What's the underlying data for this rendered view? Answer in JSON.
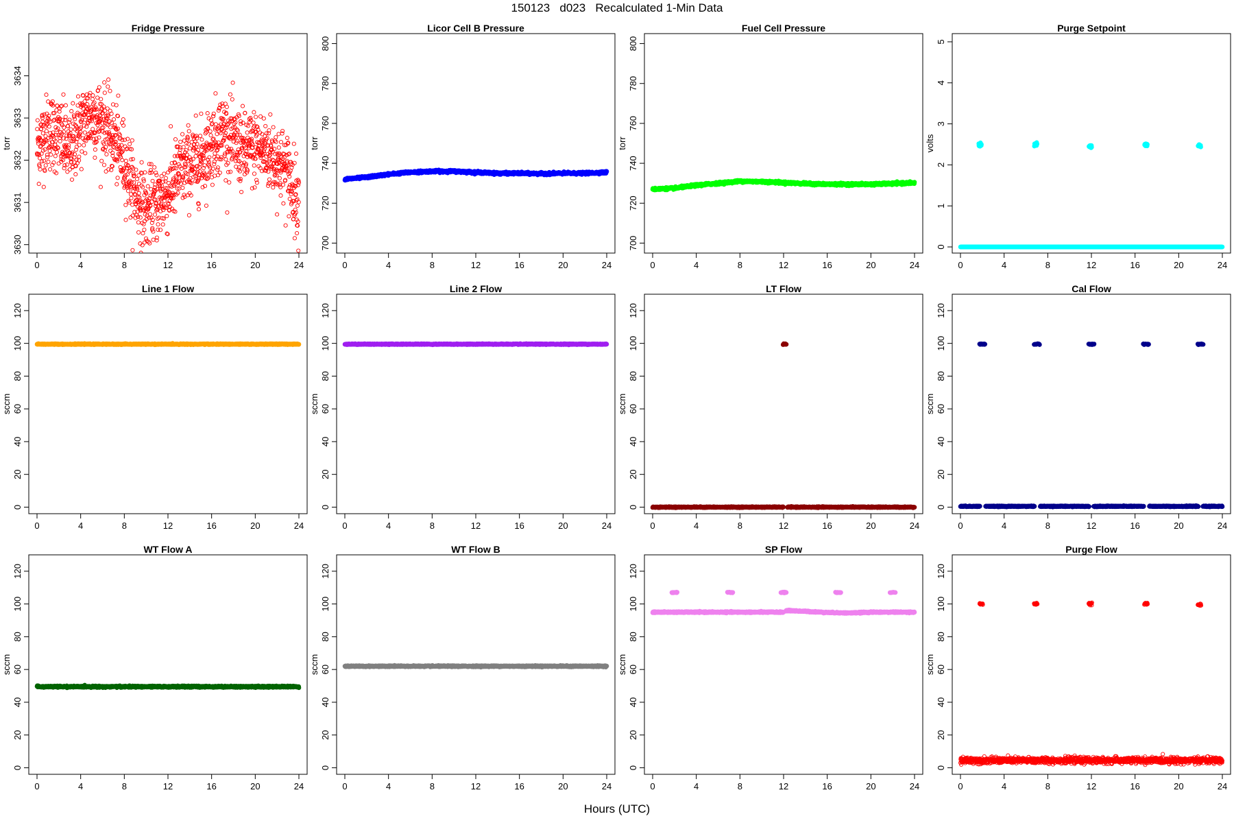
{
  "figure": {
    "title": "150123   d023   Recalculated 1-Min Data",
    "xlabel": "Hours (UTC)"
  },
  "chart_data": [
    {
      "type": "scatter",
      "title": "Fridge Pressure",
      "ylabel": "torr",
      "color": "#ff0000",
      "marker": "open-circle",
      "xlim": [
        0,
        24
      ],
      "xticks": [
        0,
        4,
        8,
        12,
        16,
        20,
        24
      ],
      "ylim": [
        3629.8,
        3635.0
      ],
      "yticks": [
        3630,
        3631,
        3632,
        3633,
        3634
      ],
      "series": [
        {
          "profile": [
            [
              0,
              3632.3
            ],
            [
              1,
              3632.7
            ],
            [
              2,
              3632.6
            ],
            [
              3,
              3632.2
            ],
            [
              4,
              3632.8
            ],
            [
              5,
              3633.1
            ],
            [
              6,
              3632.9
            ],
            [
              7,
              3632.5
            ],
            [
              8,
              3632.0
            ],
            [
              9,
              3631.2
            ],
            [
              10,
              3630.8
            ],
            [
              11,
              3631.0
            ],
            [
              12,
              3631.2
            ],
            [
              13,
              3631.7
            ],
            [
              14,
              3631.9
            ],
            [
              15,
              3632.0
            ],
            [
              16,
              3632.4
            ],
            [
              17,
              3632.7
            ],
            [
              18,
              3632.4
            ],
            [
              19,
              3632.2
            ],
            [
              20,
              3632.3
            ],
            [
              21,
              3632.2
            ],
            [
              22,
              3632.0
            ],
            [
              23,
              3631.7
            ],
            [
              24,
              3631.0
            ]
          ],
          "spread": 1.0,
          "n": 1440
        }
      ]
    },
    {
      "type": "scatter",
      "title": "Licor Cell B Pressure",
      "ylabel": "torr",
      "color": "#0000ff",
      "marker": "filled",
      "xlim": [
        0,
        24
      ],
      "xticks": [
        0,
        4,
        8,
        12,
        16,
        20,
        24
      ],
      "ylim": [
        695,
        805
      ],
      "yticks": [
        700,
        720,
        740,
        760,
        780,
        800
      ],
      "series": [
        {
          "profile": [
            [
              0,
              732
            ],
            [
              2,
              733
            ],
            [
              4,
              734.5
            ],
            [
              6,
              735.5
            ],
            [
              8,
              736
            ],
            [
              10,
              736
            ],
            [
              12,
              735.5
            ],
            [
              14,
              735
            ],
            [
              16,
              735
            ],
            [
              18,
              734.8
            ],
            [
              20,
              735
            ],
            [
              22,
              735
            ],
            [
              24,
              735.5
            ]
          ],
          "spread": 0.6,
          "n": 1440
        }
      ]
    },
    {
      "type": "scatter",
      "title": "Fuel Cell Pressure",
      "ylabel": "torr",
      "color": "#00ff00",
      "marker": "filled",
      "xlim": [
        0,
        24
      ],
      "xticks": [
        0,
        4,
        8,
        12,
        16,
        20,
        24
      ],
      "ylim": [
        695,
        805
      ],
      "yticks": [
        700,
        720,
        740,
        760,
        780,
        800
      ],
      "series": [
        {
          "profile": [
            [
              0,
              727
            ],
            [
              2,
              727.5
            ],
            [
              4,
              729
            ],
            [
              6,
              730
            ],
            [
              8,
              731
            ],
            [
              10,
              730.8
            ],
            [
              12,
              730.3
            ],
            [
              14,
              729.8
            ],
            [
              16,
              729.5
            ],
            [
              18,
              729.5
            ],
            [
              20,
              729.5
            ],
            [
              22,
              729.8
            ],
            [
              24,
              730.2
            ]
          ],
          "spread": 0.6,
          "n": 1440
        }
      ]
    },
    {
      "type": "scatter",
      "title": "Purge Setpoint",
      "ylabel": "volts",
      "color": "#00ffff",
      "marker": "filled",
      "xlim": [
        0,
        24
      ],
      "xticks": [
        0,
        4,
        8,
        12,
        16,
        20,
        24
      ],
      "ylim": [
        -0.15,
        5.2
      ],
      "yticks": [
        0,
        1,
        2,
        3,
        4,
        5
      ],
      "series": [
        {
          "profile": [
            [
              0,
              0
            ],
            [
              24,
              0
            ]
          ],
          "spread": 0.0,
          "n": 1440
        },
        {
          "clusters": [
            [
              1.8,
              2.48
            ],
            [
              6.9,
              2.5
            ],
            [
              11.9,
              2.45
            ],
            [
              17.0,
              2.48
            ],
            [
              21.9,
              2.47
            ]
          ],
          "width": 0.25,
          "spread": 0.05,
          "n": 15
        }
      ]
    },
    {
      "type": "scatter",
      "title": "Line 1 Flow",
      "ylabel": "sccm",
      "color": "#ffa500",
      "marker": "filled",
      "xlim": [
        0,
        24
      ],
      "xticks": [
        0,
        4,
        8,
        12,
        16,
        20,
        24
      ],
      "ylim": [
        -4,
        130
      ],
      "yticks": [
        0,
        20,
        40,
        60,
        80,
        100,
        120
      ],
      "series": [
        {
          "profile": [
            [
              0,
              99.5
            ],
            [
              24,
              99.5
            ]
          ],
          "spread": 0.3,
          "n": 1440
        }
      ]
    },
    {
      "type": "scatter",
      "title": "Line 2 Flow",
      "ylabel": "sccm",
      "color": "#a020f0",
      "marker": "filled",
      "xlim": [
        0,
        24
      ],
      "xticks": [
        0,
        4,
        8,
        12,
        16,
        20,
        24
      ],
      "ylim": [
        -4,
        130
      ],
      "yticks": [
        0,
        20,
        40,
        60,
        80,
        100,
        120
      ],
      "series": [
        {
          "profile": [
            [
              0,
              99.5
            ],
            [
              24,
              99.5
            ]
          ],
          "spread": 0.3,
          "n": 1440
        }
      ]
    },
    {
      "type": "scatter",
      "title": "LT Flow",
      "ylabel": "sccm",
      "color": "#8b0000",
      "marker": "filled",
      "xlim": [
        0,
        24
      ],
      "xticks": [
        0,
        4,
        8,
        12,
        16,
        20,
        24
      ],
      "ylim": [
        -4,
        130
      ],
      "yticks": [
        0,
        20,
        40,
        60,
        80,
        100,
        120
      ],
      "series": [
        {
          "profile": [
            [
              0,
              0
            ],
            [
              24,
              0
            ]
          ],
          "spread": 0.3,
          "n": 1440,
          "gaps": [
            [
              12.0,
              12.35
            ]
          ]
        },
        {
          "clusters": [
            [
              12.1,
              99.5
            ]
          ],
          "width": 0.3,
          "spread": 0.4,
          "n": 15
        }
      ]
    },
    {
      "type": "scatter",
      "title": "Cal Flow",
      "ylabel": "sccm",
      "color": "#00008b",
      "marker": "filled",
      "xlim": [
        0,
        24
      ],
      "xticks": [
        0,
        4,
        8,
        12,
        16,
        20,
        24
      ],
      "ylim": [
        -4,
        130
      ],
      "yticks": [
        0,
        20,
        40,
        60,
        80,
        100,
        120
      ],
      "series": [
        {
          "profile": [
            [
              0,
              0.5
            ],
            [
              24,
              0.5
            ]
          ],
          "spread": 0.3,
          "n": 1440,
          "gaps": [
            [
              1.8,
              2.3
            ],
            [
              6.8,
              7.3
            ],
            [
              11.8,
              12.2
            ],
            [
              16.8,
              17.3
            ],
            [
              21.8,
              22.2
            ]
          ]
        },
        {
          "clusters": [
            [
              2.0,
              99.5
            ],
            [
              7.0,
              99.5
            ],
            [
              12.0,
              99.5
            ],
            [
              17.0,
              99.5
            ],
            [
              22.0,
              99.5
            ]
          ],
          "width": 0.5,
          "spread": 0.3,
          "n": 20
        }
      ]
    },
    {
      "type": "scatter",
      "title": "WT Flow A",
      "ylabel": "sccm",
      "color": "#006400",
      "marker": "filled",
      "xlim": [
        0,
        24
      ],
      "xticks": [
        0,
        4,
        8,
        12,
        16,
        20,
        24
      ],
      "ylim": [
        -4,
        130
      ],
      "yticks": [
        0,
        20,
        40,
        60,
        80,
        100,
        120
      ],
      "series": [
        {
          "profile": [
            [
              0,
              49.5
            ],
            [
              24,
              49.5
            ]
          ],
          "spread": 0.5,
          "n": 1440
        }
      ]
    },
    {
      "type": "scatter",
      "title": "WT Flow B",
      "ylabel": "sccm",
      "color": "#808080",
      "marker": "filled",
      "xlim": [
        0,
        24
      ],
      "xticks": [
        0,
        4,
        8,
        12,
        16,
        20,
        24
      ],
      "ylim": [
        -4,
        130
      ],
      "yticks": [
        0,
        20,
        40,
        60,
        80,
        100,
        120
      ],
      "series": [
        {
          "profile": [
            [
              0,
              62
            ],
            [
              24,
              62
            ]
          ],
          "spread": 0.4,
          "n": 1440
        }
      ]
    },
    {
      "type": "scatter",
      "title": "SP Flow",
      "ylabel": "sccm",
      "color": "#ee82ee",
      "marker": "filled",
      "xlim": [
        0,
        24
      ],
      "xticks": [
        0,
        4,
        8,
        12,
        16,
        20,
        24
      ],
      "ylim": [
        -4,
        130
      ],
      "yticks": [
        0,
        20,
        40,
        60,
        80,
        100,
        120
      ],
      "series": [
        {
          "profile": [
            [
              0,
              95
            ],
            [
              12,
              95
            ],
            [
              12.3,
              96
            ],
            [
              14,
              95.5
            ],
            [
              16,
              94.8
            ],
            [
              18,
              94.5
            ],
            [
              20,
              95
            ],
            [
              24,
              95
            ]
          ],
          "spread": 0.4,
          "n": 1440,
          "gaps": [
            [
              12.0,
              12.2
            ]
          ]
        },
        {
          "clusters": [
            [
              2.0,
              107
            ],
            [
              7.1,
              107
            ],
            [
              12.0,
              107
            ],
            [
              17.0,
              107
            ],
            [
              22.0,
              107
            ]
          ],
          "width": 0.5,
          "spread": 0.3,
          "n": 15
        }
      ]
    },
    {
      "type": "scatter",
      "title": "Purge Flow",
      "ylabel": "sccm",
      "color": "#ff0000",
      "marker": "open-circle",
      "xlim": [
        0,
        24
      ],
      "xticks": [
        0,
        4,
        8,
        12,
        16,
        20,
        24
      ],
      "ylim": [
        -4,
        130
      ],
      "yticks": [
        0,
        20,
        40,
        60,
        80,
        100,
        120
      ],
      "series": [
        {
          "profile": [
            [
              0,
              4.5
            ],
            [
              24,
              4.5
            ]
          ],
          "spread": 2.0,
          "n": 1440
        },
        {
          "clusters": [
            [
              1.9,
              100
            ],
            [
              6.9,
              100
            ],
            [
              11.9,
              100
            ],
            [
              17.0,
              100
            ],
            [
              21.9,
              99.5
            ]
          ],
          "width": 0.3,
          "spread": 0.8,
          "n": 15
        }
      ]
    }
  ]
}
